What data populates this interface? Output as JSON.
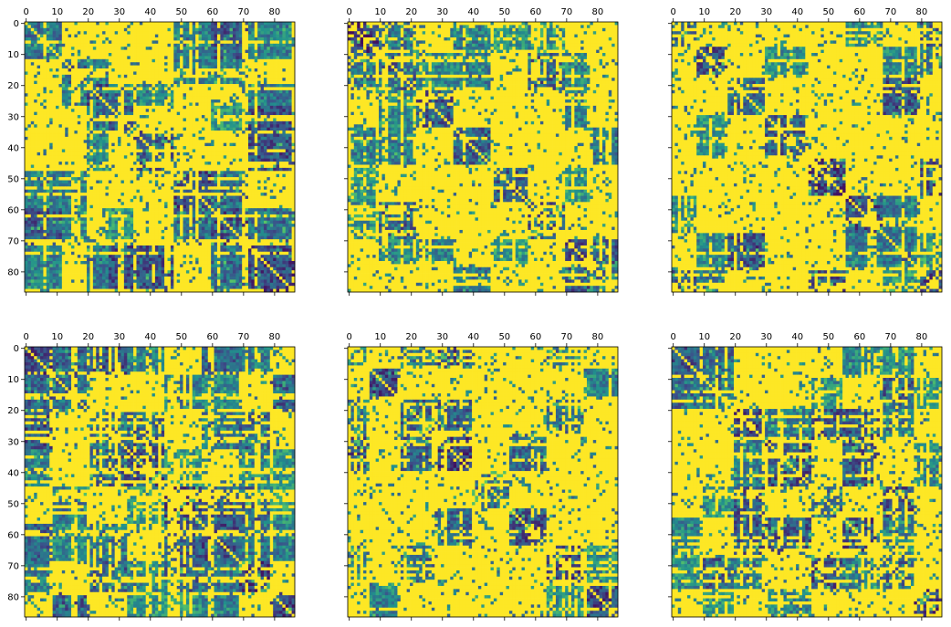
{
  "figure": {
    "rows": 2,
    "cols": 3,
    "shared_y_axis": true
  },
  "chart_data": [
    {
      "type": "heatmap",
      "panel": 1,
      "x_ticks": [
        0,
        10,
        20,
        30,
        40,
        50,
        60,
        70,
        80
      ],
      "y_ticks": [
        0,
        10,
        20,
        30,
        40,
        50,
        60,
        70,
        80
      ],
      "xlim": [
        0,
        87
      ],
      "ylim": [
        87,
        0
      ],
      "matrix_size": 87,
      "colormap": "viridis",
      "value_range": [
        0,
        1
      ],
      "x_axis_position": "top",
      "y_tick_labels_visible": true,
      "seed": 11,
      "block_boundaries": [
        0,
        12,
        20,
        27,
        35,
        48,
        60,
        72,
        87
      ],
      "notes": "diagonal blocks dark, many bright off-block bands"
    },
    {
      "type": "heatmap",
      "panel": 2,
      "x_ticks": [
        0,
        10,
        20,
        30,
        40,
        50,
        60,
        70,
        80
      ],
      "y_ticks": [
        0,
        10,
        20,
        30,
        40,
        50,
        60,
        70,
        80
      ],
      "xlim": [
        0,
        87
      ],
      "ylim": [
        87,
        0
      ],
      "matrix_size": 87,
      "colormap": "viridis",
      "value_range": [
        0,
        1
      ],
      "x_axis_position": "top",
      "y_tick_labels_visible": false,
      "seed": 23,
      "block_boundaries": [
        0,
        10,
        22,
        34,
        46,
        58,
        70,
        78,
        87
      ]
    },
    {
      "type": "heatmap",
      "panel": 3,
      "x_ticks": [
        0,
        10,
        20,
        30,
        40,
        50,
        60,
        70,
        80
      ],
      "y_ticks": [
        0,
        10,
        20,
        30,
        40,
        50,
        60,
        70,
        80
      ],
      "xlim": [
        0,
        87
      ],
      "ylim": [
        87,
        0
      ],
      "matrix_size": 87,
      "colormap": "viridis",
      "value_range": [
        0,
        1
      ],
      "x_axis_position": "top",
      "y_tick_labels_visible": false,
      "seed": 37,
      "block_boundaries": [
        0,
        8,
        18,
        30,
        44,
        56,
        68,
        80,
        87
      ]
    },
    {
      "type": "heatmap",
      "panel": 4,
      "x_ticks": [
        0,
        10,
        20,
        30,
        40,
        50,
        60,
        70,
        80
      ],
      "y_ticks": [
        0,
        10,
        20,
        30,
        40,
        50,
        60,
        70,
        80
      ],
      "xlim": [
        0,
        87
      ],
      "ylim": [
        87,
        0
      ],
      "matrix_size": 87,
      "colormap": "viridis",
      "value_range": [
        0,
        1
      ],
      "x_axis_position": "top",
      "y_tick_labels_visible": true,
      "seed": 41,
      "block_boundaries": [
        0,
        9,
        21,
        33,
        45,
        57,
        69,
        79,
        87
      ]
    },
    {
      "type": "heatmap",
      "panel": 5,
      "x_ticks": [
        0,
        10,
        20,
        30,
        40,
        50,
        60,
        70,
        80
      ],
      "y_ticks": [
        0,
        10,
        20,
        30,
        40,
        50,
        60,
        70,
        80
      ],
      "xlim": [
        0,
        87
      ],
      "ylim": [
        87,
        0
      ],
      "matrix_size": 87,
      "colormap": "viridis",
      "value_range": [
        0,
        1
      ],
      "x_axis_position": "top",
      "y_tick_labels_visible": false,
      "seed": 53,
      "block_boundaries": [
        0,
        7,
        17,
        28,
        40,
        52,
        64,
        76,
        87
      ]
    },
    {
      "type": "heatmap",
      "panel": 6,
      "x_ticks": [
        0,
        10,
        20,
        30,
        40,
        50,
        60,
        70,
        80
      ],
      "y_ticks": [
        0,
        10,
        20,
        30,
        40,
        50,
        60,
        70,
        80
      ],
      "xlim": [
        0,
        87
      ],
      "ylim": [
        87,
        0
      ],
      "matrix_size": 87,
      "colormap": "viridis",
      "value_range": [
        0,
        1
      ],
      "x_axis_position": "top",
      "y_tick_labels_visible": false,
      "seed": 67,
      "block_boundaries": [
        0,
        10,
        20,
        30,
        45,
        55,
        67,
        78,
        87
      ]
    }
  ],
  "colors": {
    "viridis_dark": "#440154",
    "viridis_mid_dark": "#3b528b",
    "viridis_mid": "#21908d",
    "viridis_light": "#5dc963",
    "viridis_bright": "#fde725",
    "axis": "#000000",
    "background": "#ffffff"
  }
}
